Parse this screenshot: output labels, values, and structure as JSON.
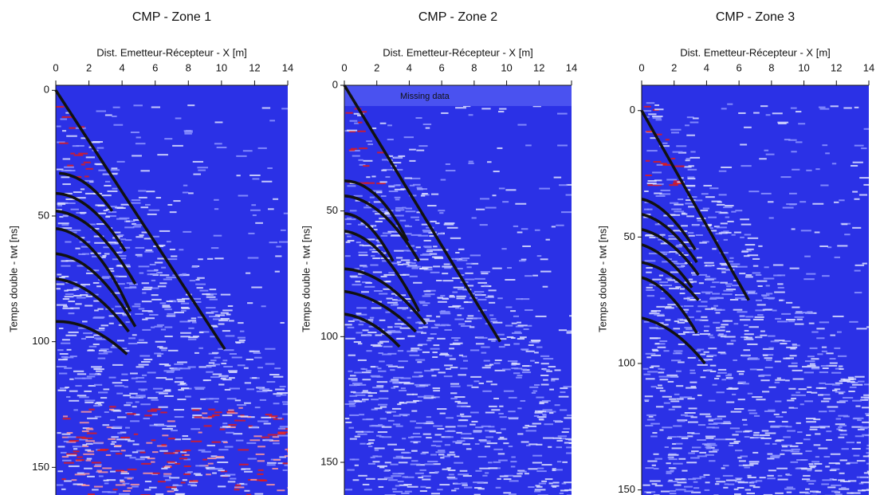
{
  "chart_data": [
    {
      "type": "image",
      "title": "CMP - Zone 1",
      "x_label": "Dist. Emetteur-Récepteur - X [m]",
      "y_label": "Temps double - twt [ns]",
      "xlim": [
        0,
        14
      ],
      "xticks": [
        0,
        2,
        4,
        6,
        8,
        10,
        12,
        14
      ],
      "ylim": [
        -2,
        161
      ],
      "yticks": [
        0,
        50,
        100,
        150
      ],
      "y_inverted": true,
      "lines": [
        {
          "x": [
            0,
            10.2
          ],
          "y": [
            0,
            103
          ]
        },
        {
          "x": [
            0.2,
            1.8,
            3.4
          ],
          "y": [
            33,
            37,
            48
          ]
        },
        {
          "x": [
            0,
            2.1,
            4.2
          ],
          "y": [
            41,
            47,
            64
          ]
        },
        {
          "x": [
            0,
            2.4,
            4.8
          ],
          "y": [
            48,
            56,
            77
          ]
        },
        {
          "x": [
            0,
            2.3,
            4.5
          ],
          "y": [
            55,
            64,
            88
          ]
        },
        {
          "x": [
            0,
            2.4,
            4.8
          ],
          "y": [
            65,
            73,
            94
          ]
        },
        {
          "x": [
            0,
            2.2,
            4.4
          ],
          "y": [
            75,
            81,
            96
          ]
        },
        {
          "x": [
            0,
            2.1,
            4.3
          ],
          "y": [
            92,
            95,
            105
          ]
        }
      ]
    },
    {
      "type": "image",
      "title": "CMP - Zone 2",
      "x_label": "Dist. Emetteur-Récepteur - X [m]",
      "y_label": "Temps double - twt [ns]",
      "xlim": [
        0,
        14
      ],
      "xticks": [
        0,
        2,
        4,
        6,
        8,
        10,
        12,
        14
      ],
      "ylim": [
        0,
        163
      ],
      "yticks": [
        0,
        50,
        100,
        150
      ],
      "y_inverted": true,
      "annotation": "Missing data",
      "lines": [
        {
          "x": [
            0,
            9.6
          ],
          "y": [
            0,
            102
          ]
        },
        {
          "x": [
            0,
            2.0,
            3.9
          ],
          "y": [
            38,
            44,
            62
          ]
        },
        {
          "x": [
            0,
            2.3,
            4.6
          ],
          "y": [
            44,
            51,
            70
          ]
        },
        {
          "x": [
            0,
            1.5,
            3.0
          ],
          "y": [
            51,
            56,
            70
          ]
        },
        {
          "x": [
            0,
            2.3,
            4.6
          ],
          "y": [
            58,
            67,
            90
          ]
        },
        {
          "x": [
            0,
            2.5,
            5.0
          ],
          "y": [
            73,
            79,
            95
          ]
        },
        {
          "x": [
            0,
            2.2,
            4.4
          ],
          "y": [
            82,
            87,
            98
          ]
        },
        {
          "x": [
            0,
            1.7,
            3.4
          ],
          "y": [
            91,
            95,
            104
          ]
        }
      ]
    },
    {
      "type": "image",
      "title": "CMP - Zone 3",
      "x_label": "Dist. Emetteur-Récepteur - X [m]",
      "y_label": "Temps double - twt [ns]",
      "xlim": [
        0,
        14
      ],
      "xticks": [
        0,
        2,
        4,
        6,
        8,
        10,
        12,
        14
      ],
      "ylim": [
        -10,
        152
      ],
      "yticks": [
        0,
        50,
        100,
        150
      ],
      "y_inverted": true,
      "lines": [
        {
          "x": [
            0,
            6.6
          ],
          "y": [
            0,
            75
          ]
        },
        {
          "x": [
            0,
            1.6,
            3.3
          ],
          "y": [
            35,
            41,
            55
          ]
        },
        {
          "x": [
            0,
            1.7,
            3.4
          ],
          "y": [
            41,
            47,
            60
          ]
        },
        {
          "x": [
            0,
            1.8,
            3.5
          ],
          "y": [
            47,
            53,
            65
          ]
        },
        {
          "x": [
            0,
            1.6,
            3.1
          ],
          "y": [
            53,
            59,
            70
          ]
        },
        {
          "x": [
            0,
            1.8,
            3.5
          ],
          "y": [
            60,
            65,
            75
          ]
        },
        {
          "x": [
            0,
            1.7,
            3.4
          ],
          "y": [
            66,
            73,
            88
          ]
        },
        {
          "x": [
            0,
            2.0,
            3.9
          ],
          "y": [
            82,
            88,
            100
          ]
        }
      ]
    }
  ]
}
